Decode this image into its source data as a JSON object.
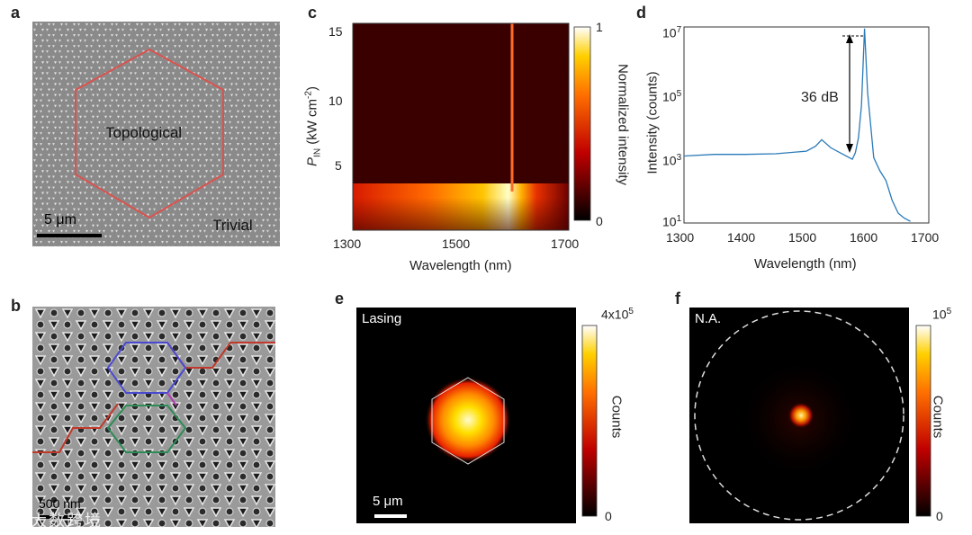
{
  "panels": {
    "a": {
      "letter": "a",
      "region_inner": "Topological",
      "region_outer": "Trivial",
      "scale_bar": "5 μm"
    },
    "b": {
      "letter": "b",
      "scale_bar": "500 nm",
      "watermark": "大数跨境"
    },
    "c": {
      "letter": "c",
      "xlabel": "Wavelength (nm)",
      "ylabel_main": "P",
      "ylabel_sub": "IN",
      "ylabel_unit": " (kW cm",
      "ylabel_sup": "-2",
      "ylabel_close": ")",
      "xticks": [
        "1300",
        "1500",
        "1700"
      ],
      "yticks": [
        "15",
        "10",
        "5"
      ],
      "colorbar_label": "Normalized intensity",
      "colorbar_max": "1",
      "colorbar_min": "0"
    },
    "d": {
      "letter": "d",
      "xlabel": "Wavelength (nm)",
      "ylabel": "Intensity (counts)",
      "xticks": [
        "1300",
        "1400",
        "1500",
        "1600",
        "1700"
      ],
      "ytick_base": "10",
      "ytick_exps": [
        "7",
        "5",
        "3",
        "1"
      ],
      "annotation": "36 dB",
      "line_color": "#2a7ab8"
    },
    "e": {
      "letter": "e",
      "title": "Lasing",
      "scale_bar": "5 μm",
      "colorbar_label": "Counts",
      "colorbar_max_base": "4x10",
      "colorbar_max_exp": "5",
      "colorbar_min": "0"
    },
    "f": {
      "letter": "f",
      "title": "N.A.",
      "colorbar_label": "Counts",
      "colorbar_max_base": "10",
      "colorbar_max_exp": "5",
      "colorbar_min": "0"
    }
  },
  "chart_data": [
    {
      "type": "heatmap",
      "panel": "c",
      "title": "",
      "xlabel": "Wavelength (nm)",
      "ylabel": "P_IN (kW cm-2)",
      "xlim": [
        1300,
        1700
      ],
      "ylim": [
        0,
        16
      ],
      "lasing_line_wavelength": 1595,
      "lasing_threshold_power": 3,
      "broad_emission_peak_wavelength": 1525
    },
    {
      "type": "line",
      "panel": "d",
      "xlabel": "Wavelength (nm)",
      "ylabel": "Intensity (counts)",
      "xlim": [
        1300,
        1700
      ],
      "ylim_log10": [
        1,
        7
      ],
      "y_scale": "log",
      "series": [
        {
          "name": "spectrum",
          "x": [
            1300,
            1350,
            1400,
            1450,
            1500,
            1515,
            1525,
            1540,
            1560,
            1575,
            1580,
            1585,
            1590,
            1595,
            1600,
            1610,
            1620,
            1630,
            1640,
            1650,
            1660,
            1670
          ],
          "log10_y": [
            3.05,
            3.1,
            3.1,
            3.12,
            3.2,
            3.35,
            3.55,
            3.3,
            3.1,
            2.95,
            3.15,
            3.6,
            4.6,
            6.95,
            5.0,
            3.0,
            2.6,
            2.3,
            1.7,
            1.3,
            1.15,
            1.05
          ]
        }
      ],
      "annotation": "36 dB"
    }
  ]
}
